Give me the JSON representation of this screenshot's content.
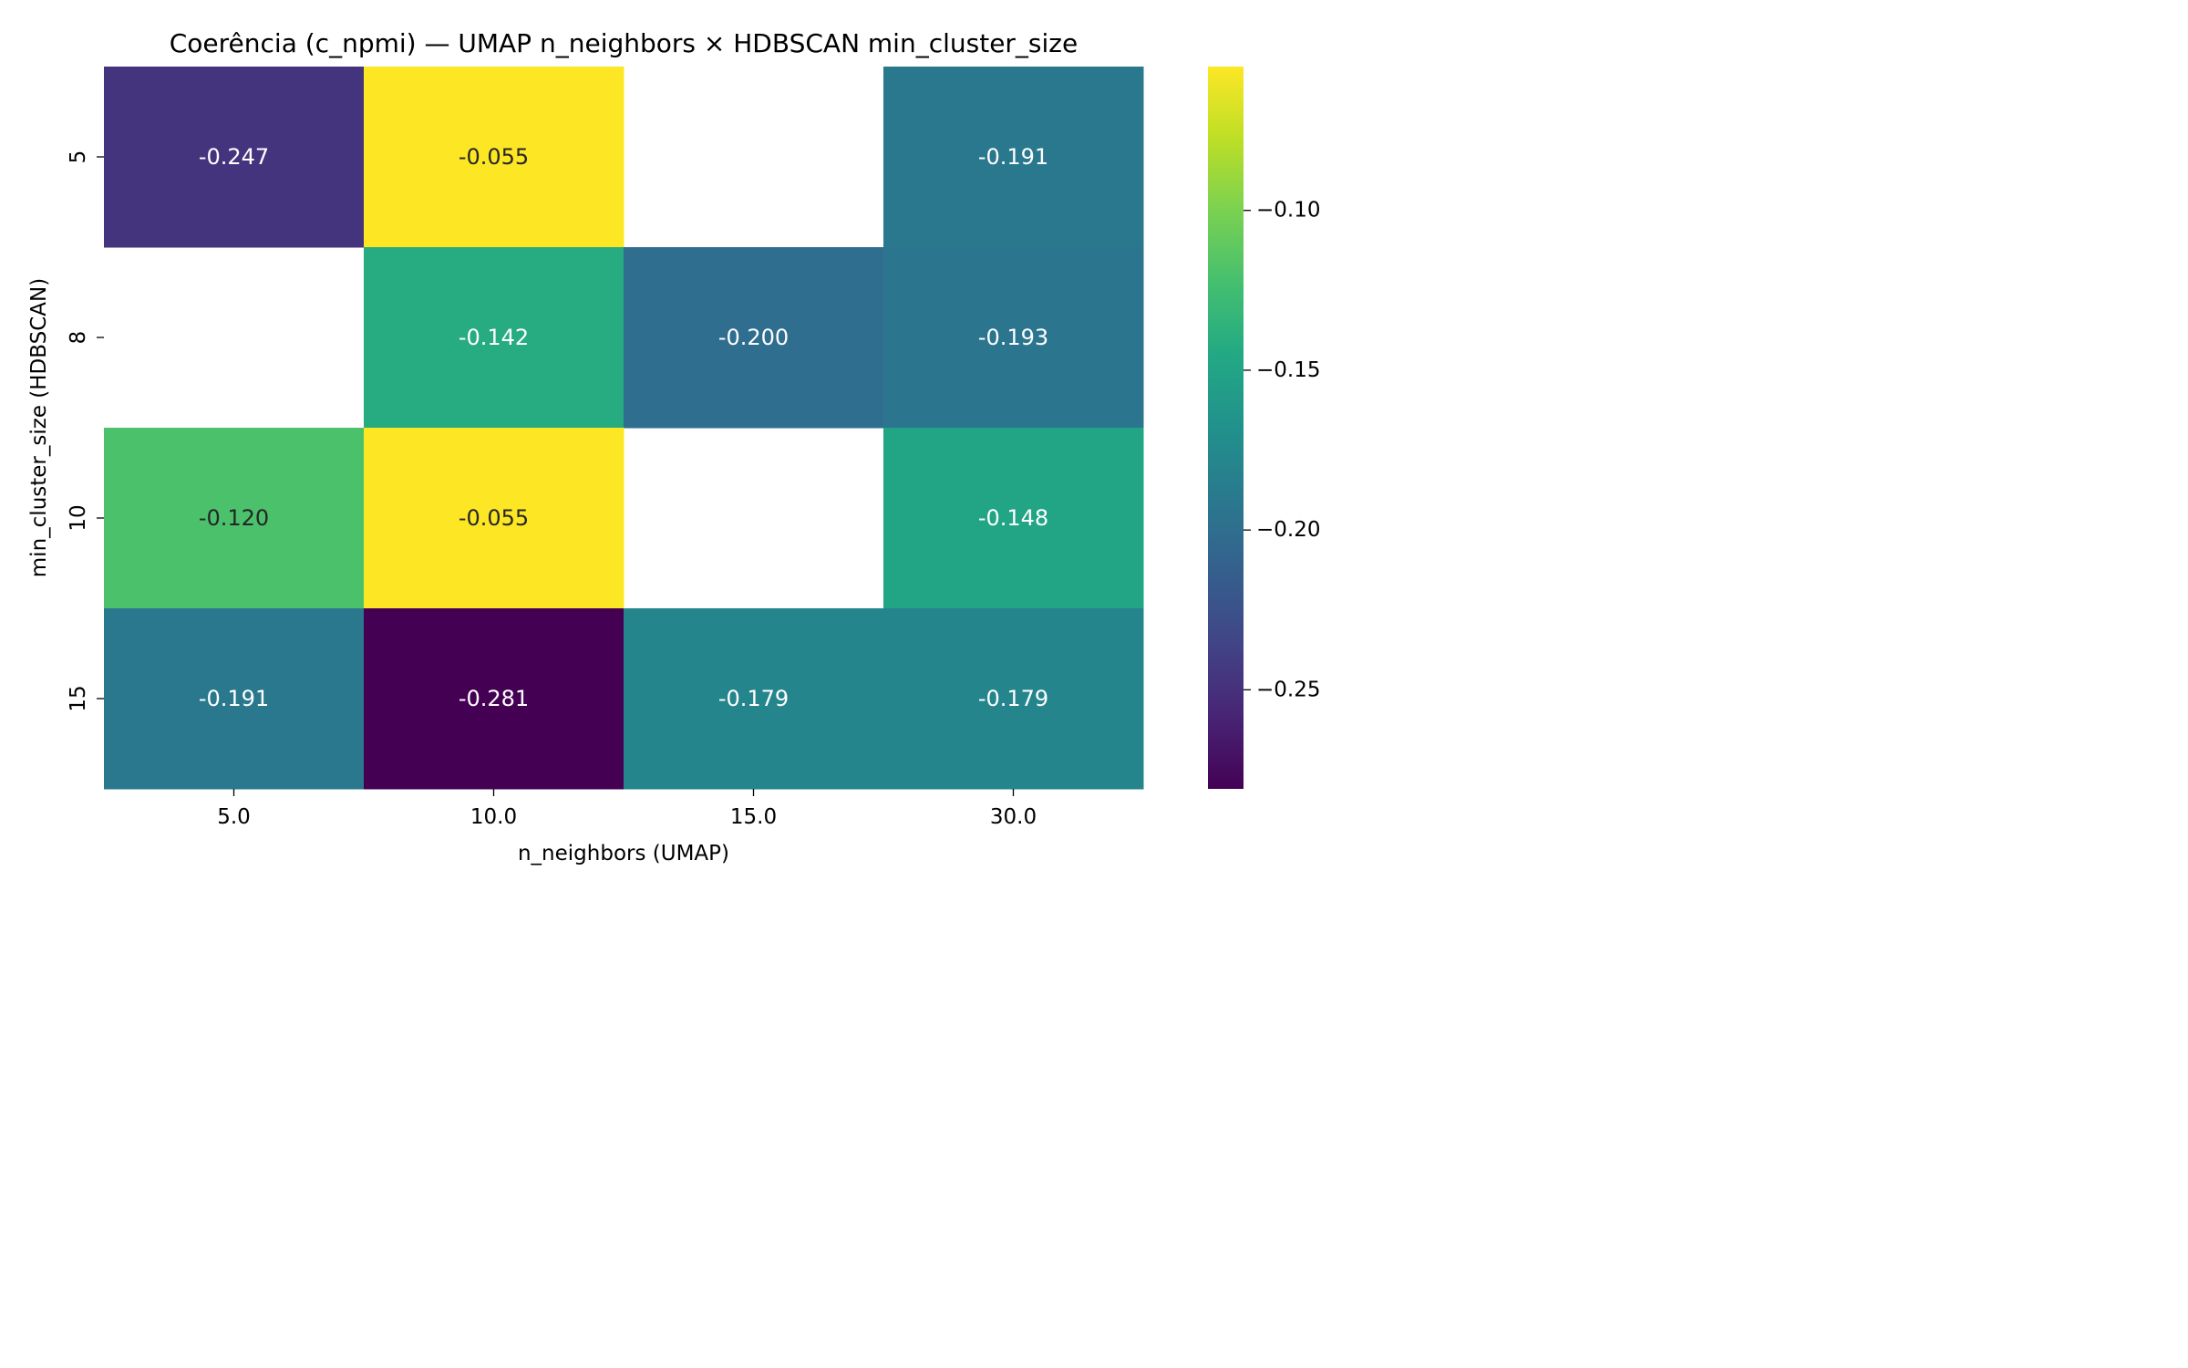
{
  "chart_data": {
    "type": "heatmap",
    "title": "Coerência (c_npmi) — UMAP n_neighbors × HDBSCAN min_cluster_size",
    "xlabel": "n_neighbors (UMAP)",
    "ylabel": "min_cluster_size (HDBSCAN)",
    "x_categories": [
      "5.0",
      "10.0",
      "15.0",
      "30.0"
    ],
    "y_categories": [
      "5",
      "8",
      "10",
      "15"
    ],
    "values": [
      [
        -0.247,
        -0.055,
        null,
        -0.191
      ],
      [
        null,
        -0.142,
        -0.2,
        -0.193
      ],
      [
        -0.12,
        -0.055,
        null,
        -0.148
      ],
      [
        -0.191,
        -0.281,
        -0.179,
        -0.179
      ]
    ],
    "cell_labels": [
      [
        "-0.247",
        "-0.055",
        "",
        "-0.191"
      ],
      [
        "",
        "-0.142",
        "-0.200",
        "-0.193"
      ],
      [
        "-0.120",
        "-0.055",
        "",
        "-0.148"
      ],
      [
        "-0.191",
        "-0.281",
        "-0.179",
        "-0.179"
      ]
    ],
    "colormap": "viridis",
    "color_range": [
      -0.281,
      -0.055
    ],
    "colorbar": {
      "ticks": [
        -0.1,
        -0.15,
        -0.2,
        -0.25
      ],
      "tick_labels": [
        "−0.10",
        "−0.15",
        "−0.20",
        "−0.25"
      ]
    },
    "missing_cells": "blank (white)",
    "legend_position": "right"
  }
}
